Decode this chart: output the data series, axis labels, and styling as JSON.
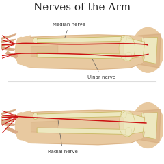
{
  "title": "Nerves of the Arm",
  "title_fontsize": 11,
  "title_color": "#222222",
  "background_color": "#ffffff",
  "skin_color": "#e8c9a0",
  "skin_dark": "#d4a87a",
  "skin_shadow": "#c9a87a",
  "bone_color": "#ede8c0",
  "bone_outline": "#c8b860",
  "nerve_color": "#cc1111",
  "finger_color": "#dba888",
  "label_median": "Median nerve",
  "label_ulnar": "Ulnar nerve",
  "label_radial": "Radial nerve",
  "label_fontsize": 5,
  "label_color": "#333333"
}
